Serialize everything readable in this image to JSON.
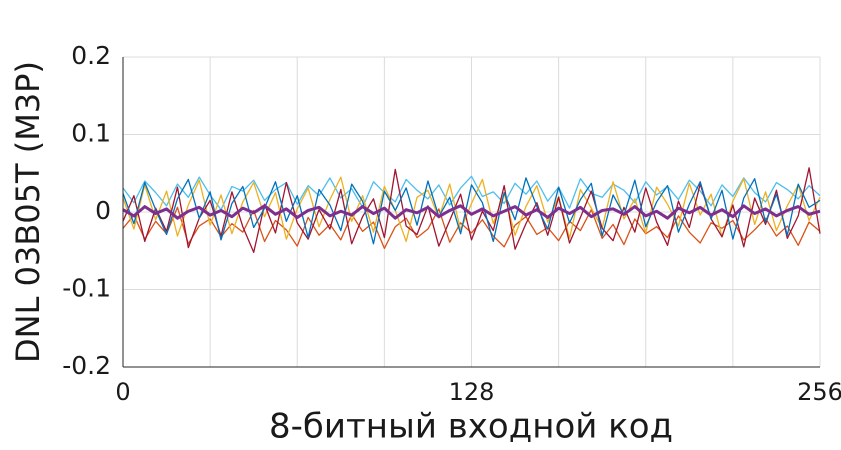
{
  "chart_data": {
    "type": "line",
    "x_label": "8-битный входной код",
    "y_label": "DNL 03B05T (M3P)",
    "x": [
      0,
      4,
      8,
      12,
      16,
      20,
      24,
      28,
      32,
      36,
      40,
      44,
      48,
      52,
      56,
      60,
      64,
      68,
      72,
      76,
      80,
      84,
      88,
      92,
      96,
      100,
      104,
      108,
      112,
      116,
      120,
      124,
      128,
      132,
      136,
      140,
      144,
      148,
      152,
      156,
      160,
      164,
      168,
      172,
      176,
      180,
      184,
      188,
      192,
      196,
      200,
      204,
      208,
      212,
      216,
      220,
      224,
      228,
      232,
      236,
      240,
      244,
      248,
      252,
      256
    ],
    "xlim": [
      0,
      256
    ],
    "xticks": [
      0,
      128,
      256
    ],
    "xminorticks": [
      32,
      64,
      96,
      160,
      192,
      224
    ],
    "ylim": [
      -0.2,
      0.2
    ],
    "yticks": [
      -0.2,
      -0.1,
      0,
      0.1,
      0.2
    ],
    "grid": true,
    "series": [
      {
        "color": "#4dbeee",
        "values": [
          0.031,
          0.012,
          0.04,
          0.025,
          0.008,
          0.036,
          0.019,
          0.045,
          0.022,
          0.003,
          0.033,
          0.027,
          0.041,
          0.015,
          0.029,
          0.038,
          0.01,
          0.034,
          0.021,
          0.044,
          0.018,
          0.03,
          0.006,
          0.039,
          0.025,
          0.013,
          0.042,
          0.028,
          0.017,
          0.035,
          0.009,
          0.031,
          0.046,
          0.02,
          0.026,
          0.011,
          0.037,
          0.023,
          0.04,
          0.014,
          0.032,
          0.005,
          0.043,
          0.024,
          0.019,
          0.036,
          0.028,
          0.012,
          0.039,
          0.022,
          0.033,
          0.016,
          0.041,
          0.027,
          0.008,
          0.035,
          0.02,
          0.044,
          0.025,
          0.013,
          0.038,
          0.029,
          0.017,
          0.034,
          0.021
        ]
      },
      {
        "color": "#d95319",
        "values": [
          -0.021,
          -0.004,
          -0.035,
          -0.012,
          -0.028,
          0.006,
          -0.041,
          -0.018,
          -0.009,
          -0.032,
          -0.015,
          -0.026,
          0.002,
          -0.038,
          -0.011,
          -0.023,
          -0.044,
          -0.007,
          -0.03,
          -0.016,
          -0.036,
          -0.003,
          -0.025,
          -0.013,
          -0.047,
          -0.019,
          -0.008,
          -0.033,
          -0.022,
          0.004,
          -0.039,
          -0.014,
          -0.027,
          -0.01,
          -0.031,
          -0.045,
          -0.017,
          -0.006,
          -0.029,
          -0.02,
          -0.037,
          -0.012,
          -0.024,
          0.003,
          -0.034,
          -0.016,
          -0.042,
          -0.009,
          -0.028,
          -0.019,
          -0.033,
          -0.005,
          -0.026,
          -0.04,
          -0.014,
          -0.021,
          -0.011,
          -0.036,
          -0.023,
          -0.008,
          -0.031,
          -0.018,
          -0.043,
          -0.013,
          -0.025
        ]
      },
      {
        "color": "#edb120",
        "values": [
          0.018,
          -0.022,
          0.035,
          -0.01,
          0.027,
          -0.031,
          0.009,
          0.041,
          -0.017,
          0.022,
          -0.028,
          0.013,
          0.038,
          -0.006,
          0.025,
          -0.035,
          0.004,
          0.031,
          -0.019,
          0.016,
          0.045,
          -0.012,
          0.021,
          -0.026,
          0.033,
          0.002,
          -0.038,
          0.019,
          0.028,
          -0.008,
          0.036,
          -0.023,
          0.011,
          0.042,
          -0.015,
          0.024,
          -0.03,
          0.007,
          0.034,
          -0.013,
          0.02,
          -0.034,
          0.029,
          0.005,
          -0.021,
          0.039,
          -0.009,
          0.017,
          -0.027,
          0.032,
          0.01,
          -0.018,
          0.037,
          -0.004,
          0.023,
          -0.032,
          0.014,
          0.043,
          -0.016,
          0.026,
          -0.024,
          0.008,
          0.035,
          -0.011,
          0.019
        ]
      },
      {
        "color": "#a2142f",
        "values": [
          -0.012,
          0.021,
          -0.038,
          0.005,
          -0.025,
          0.032,
          -0.046,
          -0.008,
          0.015,
          -0.031,
          0.026,
          -0.019,
          -0.052,
          0.01,
          -0.027,
          0.038,
          -0.014,
          -0.035,
          0.003,
          -0.022,
          0.029,
          -0.041,
          -0.006,
          0.017,
          -0.033,
          0.055,
          -0.018,
          -0.029,
          0.008,
          -0.044,
          -0.011,
          0.023,
          -0.036,
          0.001,
          -0.024,
          0.034,
          -0.048,
          -0.015,
          0.012,
          -0.03,
          0.019,
          -0.04,
          -0.007,
          0.027,
          -0.021,
          -0.037,
          0.006,
          -0.026,
          0.031,
          -0.013,
          -0.043,
          0.014,
          -0.02,
          0.036,
          -0.009,
          -0.032,
          0.009,
          -0.045,
          0.018,
          -0.016,
          0.028,
          -0.034,
          -0.005,
          0.057,
          -0.028
        ]
      },
      {
        "color": "#0072bd",
        "values": [
          0.024,
          -0.015,
          0.038,
          0.003,
          -0.029,
          0.017,
          0.042,
          -0.008,
          0.026,
          -0.036,
          0.011,
          0.033,
          -0.02,
          0.005,
          0.039,
          -0.012,
          0.021,
          -0.033,
          0.029,
          0.009,
          -0.024,
          0.036,
          0.014,
          -0.041,
          0.027,
          0.002,
          0.031,
          -0.017,
          0.04,
          -0.006,
          0.019,
          -0.028,
          0.035,
          0.012,
          -0.038,
          0.025,
          -0.01,
          0.044,
          0.007,
          -0.022,
          0.032,
          -0.014,
          0.016,
          0.037,
          -0.031,
          0.022,
          -0.004,
          0.041,
          -0.019,
          0.013,
          0.034,
          -0.026,
          0.01,
          0.039,
          -0.009,
          0.028,
          -0.035,
          0.018,
          0.043,
          -0.013,
          0.023,
          -0.03,
          0.036,
          0.006,
          0.015
        ]
      },
      {
        "color": "#7e2f8e",
        "values": [
          0.003,
          -0.005,
          0.007,
          -0.002,
          0.004,
          -0.008,
          0.001,
          0.006,
          -0.004,
          0.002,
          -0.006,
          0.005,
          -0.001,
          0.008,
          -0.003,
          0.004,
          -0.007,
          0.002,
          0.006,
          -0.005,
          0.001,
          -0.004,
          0.007,
          -0.002,
          0.005,
          -0.008,
          0.003,
          -0.001,
          0.006,
          -0.006,
          0.002,
          0.008,
          -0.003,
          0.004,
          -0.005,
          0.001,
          0.007,
          -0.004,
          0.003,
          -0.007,
          0.005,
          -0.002,
          0.006,
          -0.006,
          0.002,
          0.004,
          -0.003,
          0.007,
          -0.005,
          0.001,
          -0.008,
          0.005,
          -0.001,
          0.006,
          -0.004,
          0.003,
          -0.006,
          0.008,
          -0.002,
          0.004,
          -0.005,
          0.002,
          0.007,
          -0.003,
          0.001
        ]
      }
    ]
  }
}
